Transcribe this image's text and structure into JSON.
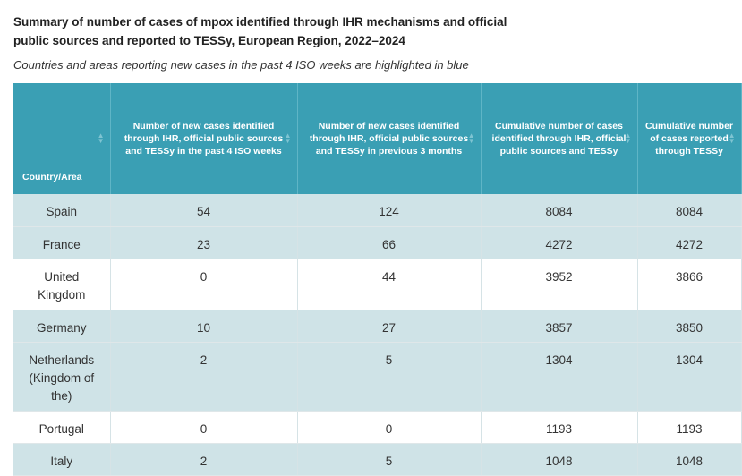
{
  "title": "Summary of number of cases of mpox identified through IHR mechanisms and official public sources and reported to TESSy, European Region, 2022–2024",
  "subtitle": "Countries and areas reporting new cases in the past 4 ISO weeks are highlighted in blue",
  "table": {
    "headers": [
      "Country/Area",
      "Number of new cases identified through IHR, official public sources and TESSy in the past 4 ISO weeks",
      "Number of new cases identified through IHR, official public sources and TESSy in previous 3 months",
      "Cumulative number of cases identified through IHR, official public sources and TESSy",
      "Cumulative number of cases reported through TESSy"
    ],
    "rows": [
      {
        "country": "Spain",
        "new4": "54",
        "prev3": "124",
        "cum": "8084",
        "tessy": "8084",
        "highlighted": true
      },
      {
        "country": "France",
        "new4": "23",
        "prev3": "66",
        "cum": "4272",
        "tessy": "4272",
        "highlighted": true
      },
      {
        "country": "United Kingdom",
        "new4": "0",
        "prev3": "44",
        "cum": "3952",
        "tessy": "3866",
        "highlighted": false
      },
      {
        "country": "Germany",
        "new4": "10",
        "prev3": "27",
        "cum": "3857",
        "tessy": "3850",
        "highlighted": true
      },
      {
        "country": "Netherlands (Kingdom of the)",
        "new4": "2",
        "prev3": "5",
        "cum": "1304",
        "tessy": "1304",
        "highlighted": true
      },
      {
        "country": "Portugal",
        "new4": "0",
        "prev3": "0",
        "cum": "1193",
        "tessy": "1193",
        "highlighted": false
      },
      {
        "country": "Italy",
        "new4": "2",
        "prev3": "5",
        "cum": "1048",
        "tessy": "1048",
        "highlighted": true
      }
    ]
  },
  "colors": {
    "header_bg": "#3a9fb4",
    "highlight_row": "#cfe3e7",
    "plain_row": "#ffffff"
  }
}
